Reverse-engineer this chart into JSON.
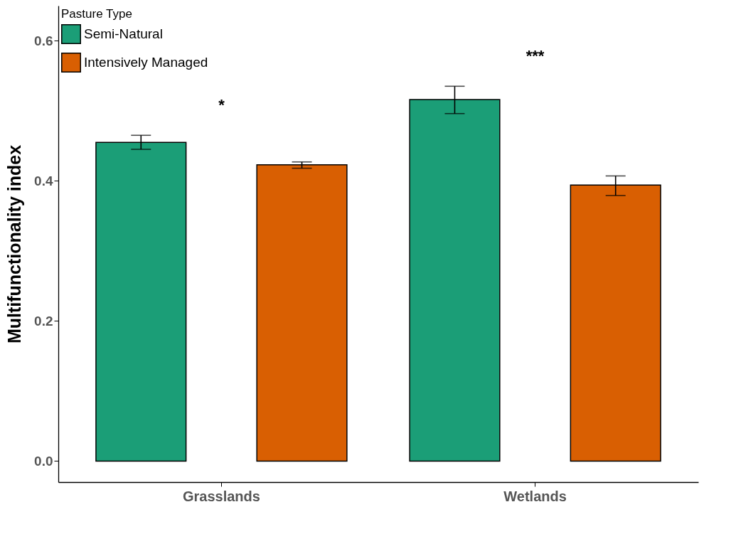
{
  "chart_data": {
    "type": "bar",
    "ylabel": "Multifunctionality index",
    "legend_title": "Pasture Type",
    "legend": "top left",
    "categories": [
      "Grasslands",
      "Wetlands"
    ],
    "series": [
      {
        "name": "Semi-Natural",
        "color": "#1b9e77",
        "values": [
          0.455,
          0.516
        ],
        "errors": [
          [
            0.445,
            0.465
          ],
          [
            0.496,
            0.535
          ]
        ]
      },
      {
        "name": "Intensively Managed",
        "color": "#d95f02",
        "values": [
          0.423,
          0.394
        ],
        "errors": [
          [
            0.418,
            0.427
          ],
          [
            0.379,
            0.407
          ]
        ]
      }
    ],
    "ylim": [
      -0.03,
      0.65
    ],
    "yticks": [
      {
        "value": 0,
        "label": "0.0"
      },
      {
        "value": 0.2,
        "label": "0.2"
      },
      {
        "value": 0.4,
        "label": "0.4"
      },
      {
        "value": 0.6,
        "label": "0.6"
      }
    ],
    "annotations": [
      "*",
      "***"
    ]
  }
}
